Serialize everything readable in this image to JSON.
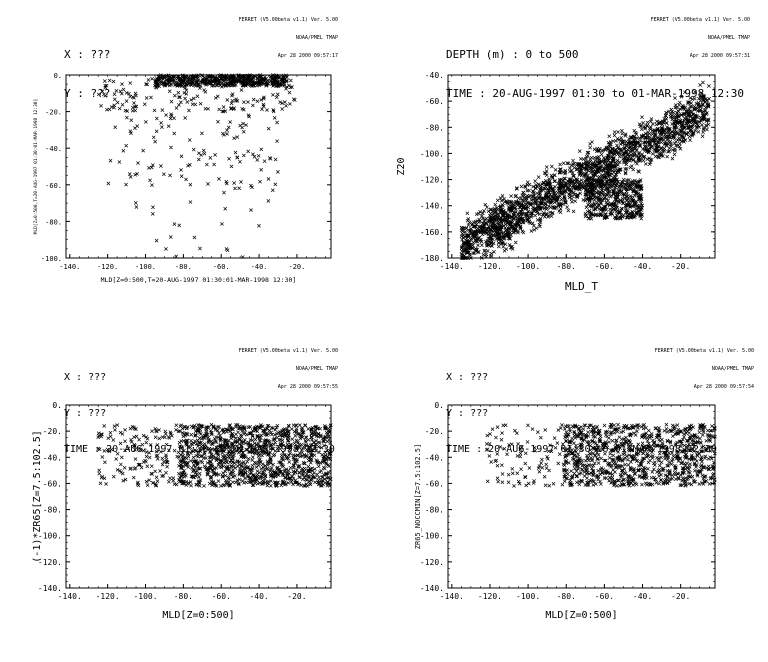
{
  "panels": [
    {
      "header": [
        "X : ???",
        "Y : ???"
      ],
      "stamp": [
        "FERRET (V5.00beta v1.1) Ver. 5.00",
        "NOAA/PMEL TMAP",
        "Apr 28 2000 09:57:17"
      ]
    },
    {
      "header": [
        "DEPTH (m) : 0 to 500",
        "TIME : 20-AUG-1997 01:30 to 01-MAR-1998 12:30"
      ],
      "stamp": [
        "FERRET (V5.00beta v1.1) Ver. 5.00",
        "NOAA/PMEL TMAP",
        "Apr 28 2000 09:57:31"
      ]
    },
    {
      "header": [
        "X : ???",
        "Y : ???",
        "TIME : 20-AUG-1997 01:30 to 01-MAR-1998 12:30"
      ],
      "stamp": [
        "FERRET (V5.00beta v1.1) Ver. 5.00",
        "NOAA/PMEL TMAP",
        "Apr 28 2000 09:57:55"
      ]
    },
    {
      "header": [
        "X : ???",
        "Y : ???",
        "TIME : 20-AUG-1997 01:30 to 01-MAR-1998 12:30"
      ],
      "stamp": [
        "FERRET (V5.00beta v1.1) Ver. 5.00",
        "NOAA/PMEL TMAP",
        "Apr 28 2000 09:57:54"
      ]
    }
  ],
  "chart_data": [
    {
      "type": "scatter",
      "marker": "x",
      "xlabel": "MLD[Z=0:500,T=20-AUG-1997 01:30:01-MAR-1998 12:30]",
      "ylabel": "MLD[Z=0:500,T=20-AUG-1997 01:30:01-MAR-1998 12:30]",
      "xlim": [
        -142,
        -2
      ],
      "ylim": [
        -100,
        0
      ],
      "xticks": [
        -140,
        -120,
        -100,
        -80,
        -60,
        -40,
        -20
      ],
      "yticks": [
        -100,
        -80,
        -60,
        -40,
        -20,
        0
      ],
      "clusters": [
        {
          "xr": [
            -95,
            -25
          ],
          "yr": [
            -6,
            0
          ],
          "n": 520
        },
        {
          "xr": [
            -125,
            -20
          ],
          "yr": [
            -20,
            -2
          ],
          "n": 160
        },
        {
          "xr": [
            -120,
            -30
          ],
          "yr": [
            -60,
            -18
          ],
          "n": 110
        },
        {
          "xr": [
            -110,
            -30
          ],
          "yr": [
            -100,
            -60
          ],
          "n": 28
        }
      ]
    },
    {
      "type": "scatter",
      "marker": "x",
      "xlabel": "MLD_T",
      "ylabel": "Z20",
      "xlim": [
        -142,
        -2
      ],
      "ylim": [
        -180,
        -40
      ],
      "xticks": [
        -140,
        -120,
        -100,
        -80,
        -60,
        -40,
        -20
      ],
      "yticks": [
        -180,
        -160,
        -140,
        -120,
        -100,
        -80,
        -60,
        -40
      ],
      "trend": {
        "x0": -135,
        "y0": -170,
        "x1": -5,
        "y1": -65,
        "spread": 18
      },
      "n": 1900,
      "clusters": [
        {
          "xr": [
            -70,
            -40
          ],
          "yr": [
            -150,
            -120
          ],
          "n": 450
        },
        {
          "xr": [
            -120,
            -108
          ],
          "yr": [
            -175,
            -140
          ],
          "n": 80
        }
      ]
    },
    {
      "type": "scatter",
      "marker": "x",
      "xlabel": "MLD[Z=0:500]",
      "ylabel": "(-1)*ZR65[Z=7.5:102.5]",
      "xlim": [
        -142,
        -2
      ],
      "ylim": [
        -140,
        0
      ],
      "xticks": [
        -140,
        -120,
        -100,
        -80,
        -60,
        -40,
        -20
      ],
      "yticks": [
        -140,
        -120,
        -100,
        -80,
        -60,
        -40,
        -20,
        0
      ],
      "clusters": [
        {
          "xr": [
            -82,
            -2
          ],
          "yr": [
            -62,
            -15
          ],
          "n": 1200
        },
        {
          "xr": [
            -125,
            -82
          ],
          "yr": [
            -62,
            -15
          ],
          "n": 160
        }
      ]
    },
    {
      "type": "scatter",
      "marker": "x",
      "xlabel": "MLD[Z=0:500]",
      "ylabel": "ZR65_NOCCMIN[Z=7.5:102.5]",
      "xlim": [
        -142,
        -2
      ],
      "ylim": [
        -140,
        0
      ],
      "xticks": [
        -140,
        -120,
        -100,
        -80,
        -60,
        -40,
        -20
      ],
      "yticks": [
        -140,
        -120,
        -100,
        -80,
        -60,
        -40,
        -20,
        0
      ],
      "clusters": [
        {
          "xr": [
            -82,
            -2
          ],
          "yr": [
            -62,
            -15
          ],
          "n": 1000
        },
        {
          "xr": [
            -122,
            -82
          ],
          "yr": [
            -62,
            -15
          ],
          "n": 90
        }
      ]
    }
  ]
}
